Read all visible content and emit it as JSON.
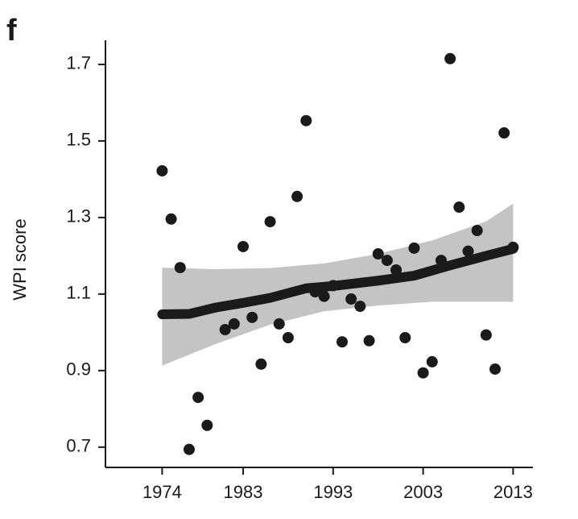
{
  "chart_data": {
    "type": "scatter",
    "panel_label": "f",
    "ylabel": "WPI score",
    "xlim": [
      1967.7,
      2015.2
    ],
    "ylim": [
      0.647,
      1.763
    ],
    "xticks": [
      1974,
      1983,
      1993,
      2003,
      2013
    ],
    "yticks": [
      0.7,
      0.9,
      1.1,
      1.3,
      1.5,
      1.7
    ],
    "color": "#1a1a1a",
    "x": [
      1974,
      1975,
      1976,
      1977,
      1978,
      1979,
      1981,
      1982,
      1983,
      1984,
      1985,
      1986,
      1987,
      1988,
      1989,
      1990,
      1991,
      1992,
      1993,
      1994,
      1995,
      1996,
      1997,
      1998,
      1999,
      2000,
      2001,
      2002,
      2003,
      2004,
      2005,
      2006,
      2007,
      2008,
      2009,
      2010,
      2011,
      2012,
      2013
    ],
    "values": [
      1.422,
      1.296,
      1.169,
      0.694,
      0.83,
      0.757,
      1.007,
      1.022,
      1.224,
      1.039,
      0.917,
      1.289,
      1.022,
      0.986,
      1.355,
      1.553,
      1.106,
      1.094,
      1.122,
      0.975,
      1.087,
      1.068,
      0.978,
      1.205,
      1.188,
      1.163,
      0.986,
      1.22,
      0.894,
      0.923,
      1.188,
      1.715,
      1.327,
      1.212,
      1.266,
      0.993,
      0.904,
      1.521,
      1.222
    ],
    "smooth": {
      "color": "#1a1a1a",
      "x": [
        1974,
        1977,
        1980,
        1983,
        1986,
        1990,
        1993,
        1998,
        2002,
        2006,
        2010,
        2013
      ],
      "values": [
        1.047,
        1.048,
        1.065,
        1.077,
        1.09,
        1.115,
        1.121,
        1.135,
        1.148,
        1.175,
        1.2,
        1.218
      ]
    },
    "band": {
      "color": "#c4c4c4",
      "x": [
        1974,
        1980,
        1986,
        1992,
        1998,
        2004,
        2010,
        2013
      ],
      "upper": [
        1.169,
        1.165,
        1.168,
        1.18,
        1.205,
        1.24,
        1.29,
        1.336
      ],
      "lower": [
        0.913,
        0.97,
        1.02,
        1.055,
        1.07,
        1.08,
        1.08,
        1.08
      ]
    }
  }
}
